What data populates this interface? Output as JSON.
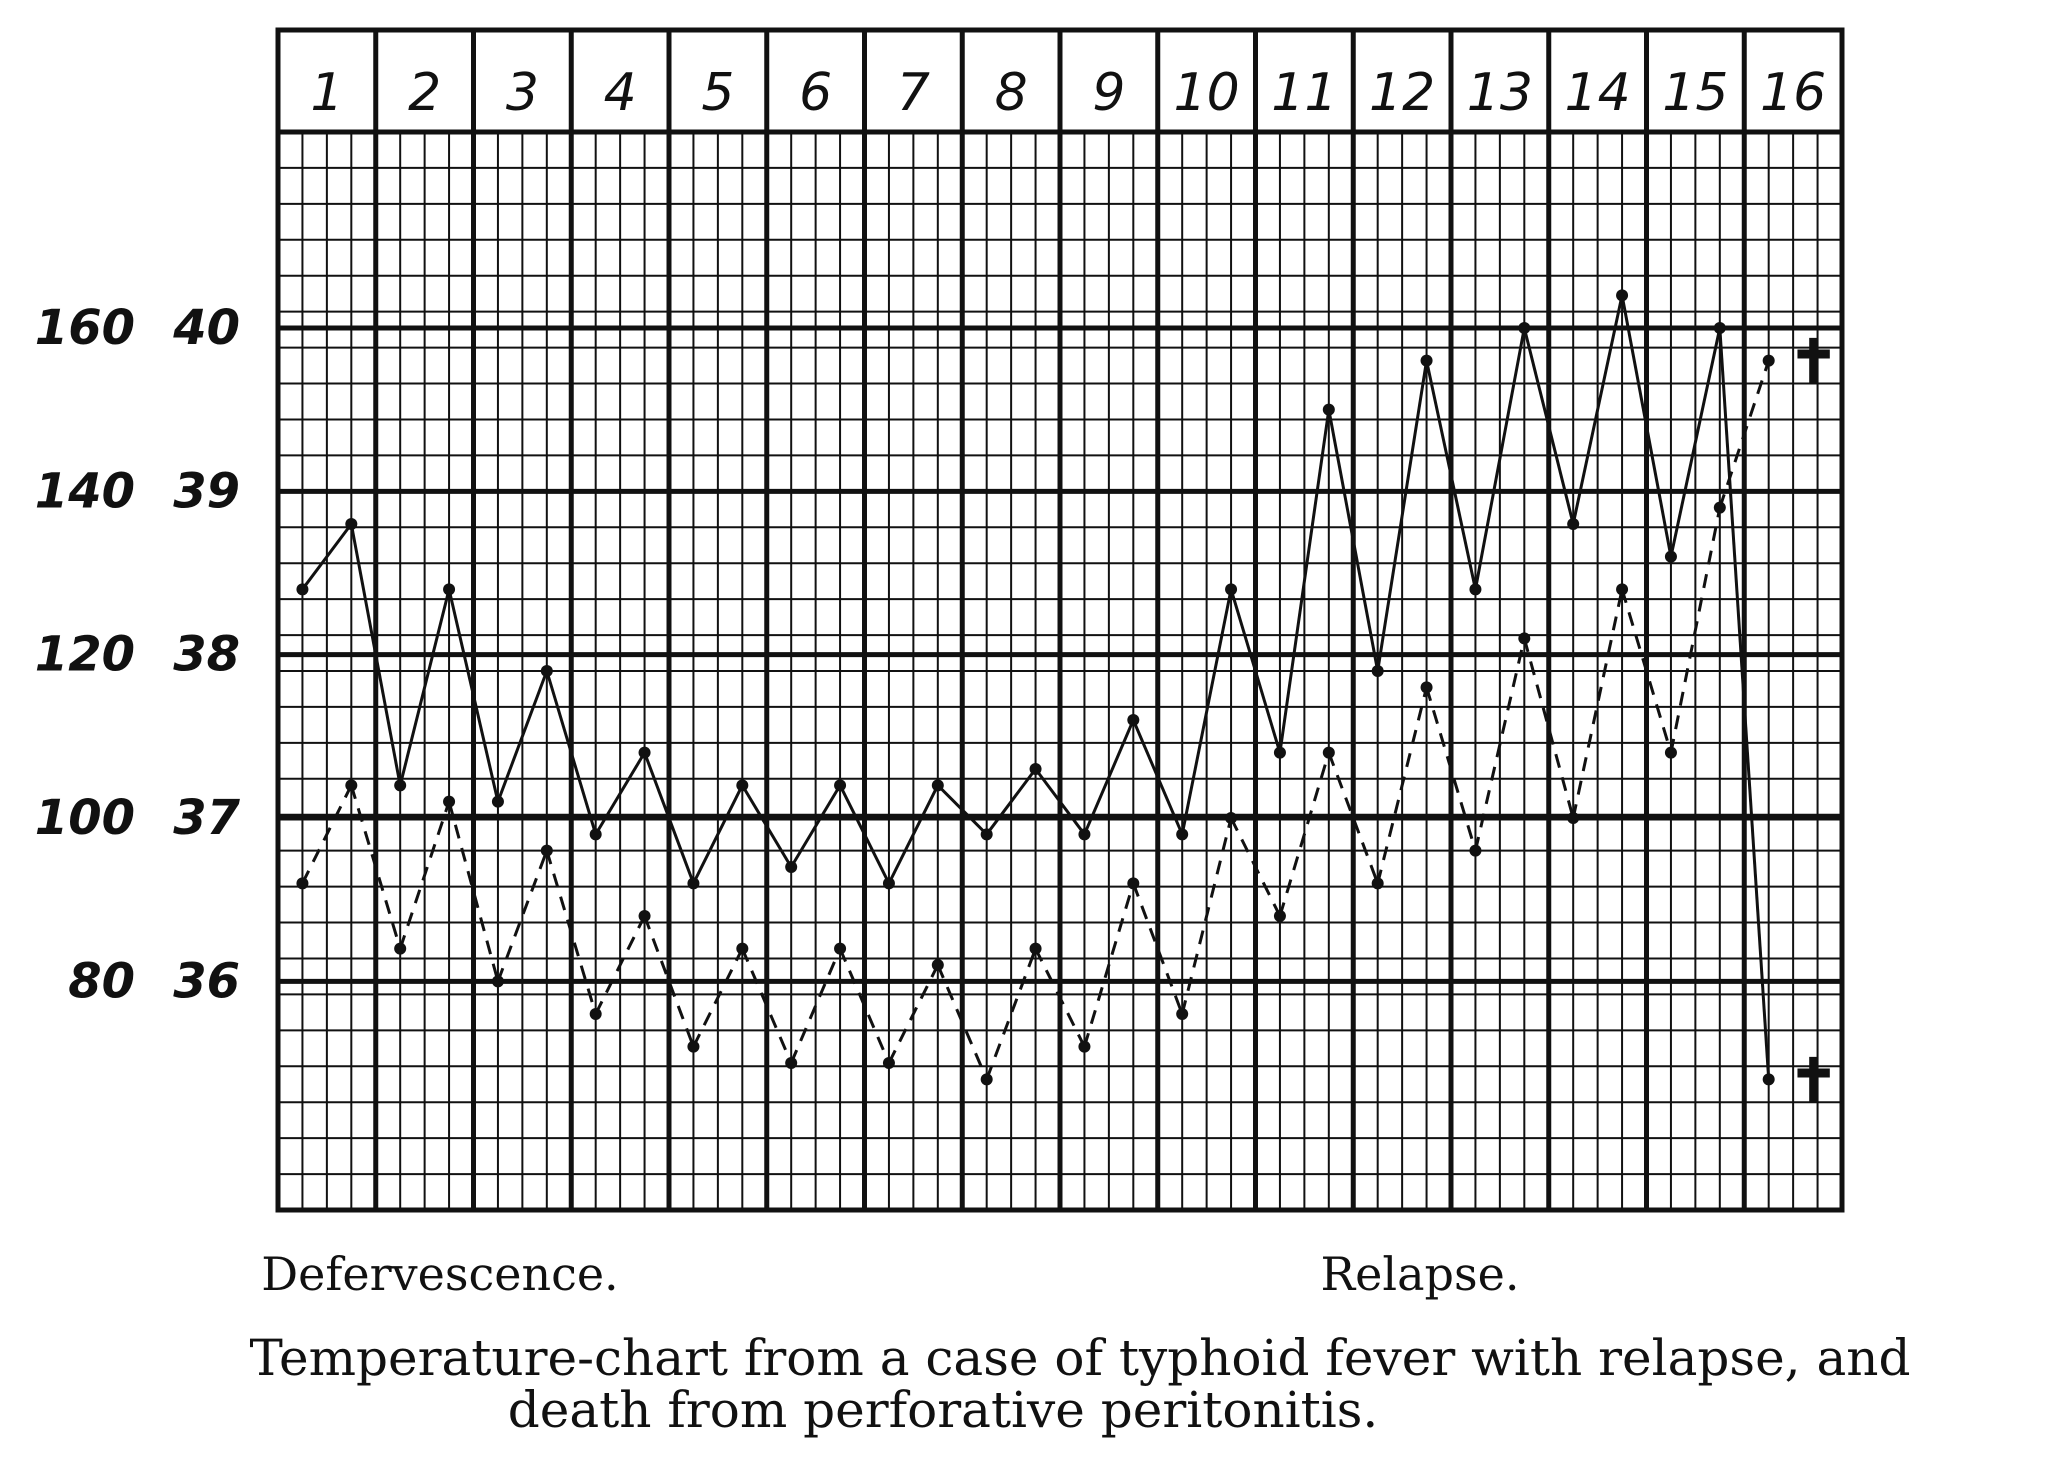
{
  "chart_data": {
    "type": "line",
    "title": "Temperature-chart from a case of typhoid fever with relapse, and death from perforative peritonitis.",
    "caption_lines": [
      "Temperature-chart from a case of typhoid fever with relapse, and",
      "death from perforative peritonitis."
    ],
    "days": [
      "1",
      "2",
      "3",
      "4",
      "5",
      "6",
      "7",
      "8",
      "9",
      "10",
      "11",
      "12",
      "13",
      "14",
      "15",
      "16"
    ],
    "pulse_ticks": [
      "160",
      "140",
      "120",
      "100",
      "80"
    ],
    "temp_ticks": [
      "40",
      "39",
      "38",
      "37",
      "36"
    ],
    "temp_tick_values": [
      40,
      39,
      38,
      37,
      36
    ],
    "ylim": [
      34.6,
      41.2
    ],
    "annotations": [
      "Defervescence.",
      "Relapse."
    ],
    "grid": true,
    "series": [
      {
        "style": "solid",
        "x": [
          1.0,
          1.5,
          2.0,
          2.5,
          3.0,
          3.5,
          4.0,
          4.5,
          5.0,
          5.5,
          6.0,
          6.5,
          7.0,
          7.5,
          8.0,
          8.5,
          9.0,
          9.5,
          10.0,
          10.5,
          11.0,
          11.5,
          12.0,
          12.5,
          13.0,
          13.5,
          14.0,
          14.5,
          15.0,
          15.5,
          16.0
        ],
        "values": [
          38.4,
          38.8,
          37.2,
          38.4,
          37.1,
          37.9,
          36.9,
          37.4,
          36.6,
          37.2,
          36.7,
          37.2,
          36.6,
          37.2,
          36.9,
          37.3,
          36.9,
          37.6,
          36.9,
          38.4,
          37.4,
          39.5,
          37.9,
          39.8,
          38.4,
          40.0,
          38.8,
          40.2,
          38.6,
          40.0,
          35.4
        ],
        "color": "#111111"
      },
      {
        "style": "dashed",
        "x": [
          1.0,
          1.5,
          2.0,
          2.5,
          3.0,
          3.5,
          4.0,
          4.5,
          5.0,
          5.5,
          6.0,
          6.5,
          7.0,
          7.5,
          8.0,
          8.5,
          9.0,
          9.5,
          10.0,
          10.5,
          11.0,
          11.5,
          12.0,
          12.5,
          13.0,
          13.5,
          14.0,
          14.5,
          15.0,
          15.5,
          16.0
        ],
        "values": [
          36.6,
          37.2,
          36.2,
          37.1,
          36.0,
          36.8,
          35.8,
          36.4,
          35.6,
          36.2,
          35.5,
          36.2,
          35.5,
          36.1,
          35.4,
          36.2,
          35.6,
          36.6,
          35.8,
          37.0,
          36.4,
          37.4,
          36.6,
          37.8,
          36.8,
          38.1,
          37.0,
          38.4,
          37.4,
          38.9,
          39.8
        ],
        "color": "#111111"
      }
    ],
    "death_markers": [
      "✝",
      "✝"
    ]
  }
}
